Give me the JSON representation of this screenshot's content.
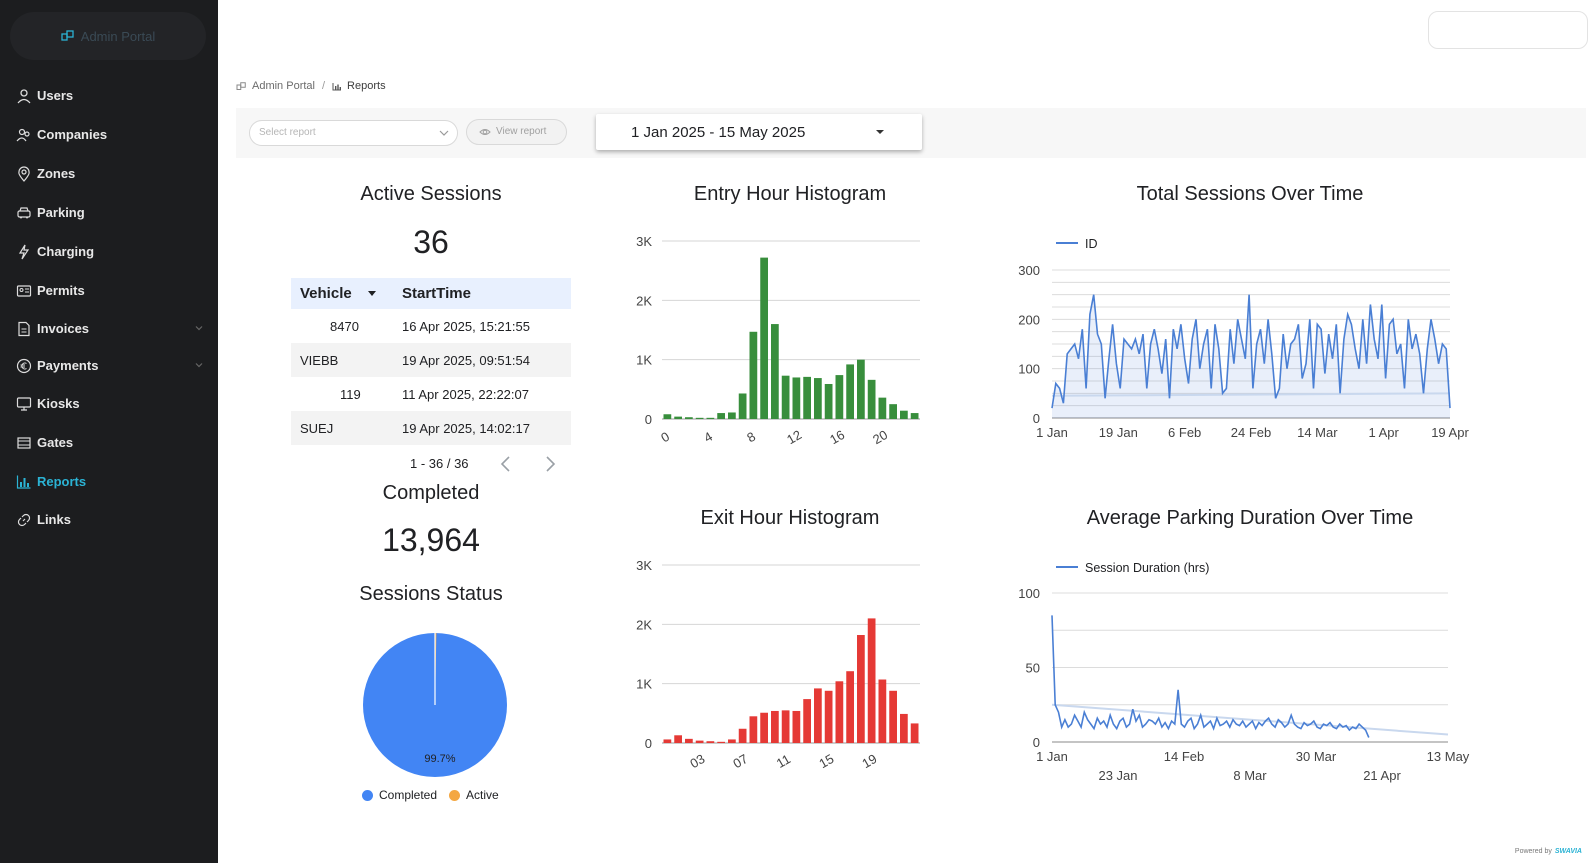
{
  "brand": {
    "name": "Admin Portal"
  },
  "sidebar": {
    "items": [
      {
        "label": "Users",
        "icon": "user-icon",
        "active": false,
        "expand": false
      },
      {
        "label": "Companies",
        "icon": "companies-icon",
        "active": false,
        "expand": false
      },
      {
        "label": "Zones",
        "icon": "location-pin-icon",
        "active": false,
        "expand": false
      },
      {
        "label": "Parking",
        "icon": "car-icon",
        "active": false,
        "expand": false
      },
      {
        "label": "Charging",
        "icon": "lightning-icon",
        "active": false,
        "expand": false
      },
      {
        "label": "Permits",
        "icon": "id-card-icon",
        "active": false,
        "expand": false
      },
      {
        "label": "Invoices",
        "icon": "document-icon",
        "active": false,
        "expand": true
      },
      {
        "label": "Payments",
        "icon": "euro-icon",
        "active": false,
        "expand": true
      },
      {
        "label": "Kiosks",
        "icon": "monitor-icon",
        "active": false,
        "expand": false
      },
      {
        "label": "Gates",
        "icon": "gate-icon",
        "active": false,
        "expand": false
      },
      {
        "label": "Reports",
        "icon": "bar-chart-icon",
        "active": true,
        "expand": false
      },
      {
        "label": "Links",
        "icon": "link-icon",
        "active": false,
        "expand": false
      }
    ]
  },
  "breadcrumb": {
    "root": "Admin Portal",
    "separator": "/",
    "current": "Reports"
  },
  "toolbar": {
    "select_placeholder": "Select report",
    "view_button": "View report",
    "date_range": "1 Jan 2025 - 15 May 2025"
  },
  "active_sessions": {
    "title": "Active Sessions",
    "value": "36",
    "table": {
      "columns": [
        "Vehicle",
        "StartTime"
      ],
      "rows": [
        {
          "vehicle": "8470",
          "start": "16 Apr 2025, 15:21:55"
        },
        {
          "vehicle": "VIEBB",
          "start": "19 Apr 2025, 09:51:54"
        },
        {
          "vehicle": "119",
          "start": "11 Apr 2025, 22:22:07"
        },
        {
          "vehicle": "SUEJ",
          "start": "19 Apr 2025, 14:02:17"
        }
      ],
      "pagination": "1 - 36 / 36"
    }
  },
  "completed": {
    "title": "Completed",
    "value": "13,964"
  },
  "sessions_status": {
    "title": "Sessions Status",
    "slice_label": "99.7%",
    "legend": [
      {
        "label": "Completed",
        "color": "#4285f4"
      },
      {
        "label": "Active",
        "color": "#f4a742"
      }
    ]
  },
  "colors": {
    "accent": "#2bb3d4",
    "entry": "#388e3c",
    "exit": "#e53935",
    "line": "#4a7fd4",
    "pie_main": "#4285f4",
    "pie_minor": "#f4a742"
  },
  "footer": {
    "powered_by": "Powered by",
    "logo_text": "SWAVIA"
  },
  "chart_data": [
    {
      "id": "entry",
      "type": "bar",
      "title": "Entry Hour Histogram",
      "categories": [
        0,
        1,
        2,
        3,
        4,
        5,
        6,
        7,
        8,
        9,
        10,
        11,
        12,
        13,
        14,
        15,
        16,
        17,
        18,
        19,
        20,
        21,
        22,
        23
      ],
      "values": [
        80,
        40,
        30,
        20,
        20,
        100,
        110,
        430,
        1470,
        2720,
        1600,
        730,
        700,
        710,
        690,
        590,
        740,
        920,
        1000,
        660,
        360,
        250,
        140,
        100
      ],
      "ylim": [
        0,
        3000
      ],
      "yticks": [
        0,
        1000,
        2000,
        3000
      ],
      "ytick_labels": [
        "0",
        "1K",
        "2K",
        "3K"
      ],
      "xtick_labels": [
        "0",
        "4",
        "8",
        "12",
        "16",
        "20"
      ],
      "xtick_at": [
        0,
        4,
        8,
        12,
        16,
        20
      ],
      "color": "#388e3c"
    },
    {
      "id": "exit",
      "type": "bar",
      "title": "Exit Hour Histogram",
      "categories": [
        0,
        1,
        2,
        3,
        4,
        5,
        6,
        7,
        8,
        9,
        10,
        11,
        12,
        13,
        14,
        15,
        16,
        17,
        18,
        19,
        20,
        21,
        22,
        23
      ],
      "values": [
        60,
        130,
        70,
        40,
        30,
        20,
        60,
        240,
        450,
        510,
        540,
        550,
        540,
        740,
        920,
        880,
        1040,
        1210,
        1820,
        2100,
        1070,
        880,
        490,
        330
      ],
      "ylim": [
        0,
        3000
      ],
      "yticks": [
        0,
        1000,
        2000,
        3000
      ],
      "ytick_labels": [
        "0",
        "1K",
        "2K",
        "3K"
      ],
      "xtick_labels": [
        "03",
        "07",
        "11",
        "15",
        "19"
      ],
      "xtick_at": [
        3,
        7,
        11,
        15,
        19
      ],
      "color": "#e53935"
    },
    {
      "id": "total",
      "type": "area",
      "title": "Total Sessions Over Time",
      "series": [
        {
          "name": "ID",
          "color": "#4a7fd4",
          "values": [
            20,
            70,
            60,
            30,
            130,
            140,
            150,
            120,
            180,
            60,
            210,
            250,
            170,
            150,
            40,
            120,
            190,
            110,
            60,
            160,
            150,
            140,
            160,
            130,
            170,
            60,
            150,
            180,
            140,
            90,
            160,
            40,
            180,
            140,
            190,
            120,
            70,
            160,
            200,
            100,
            150,
            180,
            60,
            190,
            140,
            50,
            60,
            180,
            110,
            200,
            160,
            120,
            250,
            60,
            150,
            180,
            110,
            200,
            130,
            40,
            60,
            170,
            100,
            150,
            160,
            190,
            80,
            110,
            200,
            60,
            190,
            180,
            90,
            170,
            120,
            190,
            50,
            160,
            210,
            190,
            140,
            100,
            200,
            110,
            230,
            160,
            120,
            230,
            80,
            190,
            200,
            130,
            150,
            60,
            200,
            140,
            170,
            130,
            50,
            140,
            200,
            160,
            110,
            150,
            140,
            20
          ]
        }
      ],
      "x_labels": [
        "1 Jan",
        "19 Jan",
        "6 Feb",
        "24 Feb",
        "14 Mar",
        "1 Apr",
        "19 Apr"
      ],
      "ylim": [
        0,
        300
      ],
      "yticks": [
        0,
        100,
        200,
        300
      ],
      "legend": "top-left"
    },
    {
      "id": "duration",
      "type": "line",
      "title": "Average Parking Duration Over Time",
      "series": [
        {
          "name": "Session Duration (hrs)",
          "color": "#4a7fd4",
          "values": [
            85,
            25,
            20,
            10,
            15,
            10,
            12,
            18,
            14,
            10,
            20,
            15,
            12,
            9,
            16,
            12,
            14,
            10,
            18,
            12,
            9,
            14,
            16,
            10,
            12,
            22,
            14,
            18,
            10,
            12,
            15,
            14,
            12,
            16,
            10,
            13,
            9,
            14,
            12,
            35,
            12,
            10,
            14,
            16,
            9,
            12,
            18,
            10,
            12,
            14,
            9,
            16,
            11,
            12,
            14,
            10,
            15,
            12,
            11,
            14,
            10,
            12,
            14,
            9,
            13,
            11,
            14,
            16,
            12,
            10,
            15,
            13,
            10,
            12,
            18,
            12,
            10,
            9,
            13,
            11,
            12,
            14,
            10,
            9,
            12,
            11,
            13,
            10,
            9,
            12,
            10,
            11,
            8,
            10,
            9,
            12,
            10,
            8,
            3
          ]
        }
      ],
      "x_labels_top": [
        "1 Jan",
        "14 Feb",
        "30 Mar",
        "13 May"
      ],
      "x_labels_bottom": [
        "23 Jan",
        "8 Mar",
        "21 Apr"
      ],
      "ylim": [
        0,
        100
      ],
      "yticks": [
        0,
        50,
        100
      ],
      "legend": "top-left"
    }
  ]
}
